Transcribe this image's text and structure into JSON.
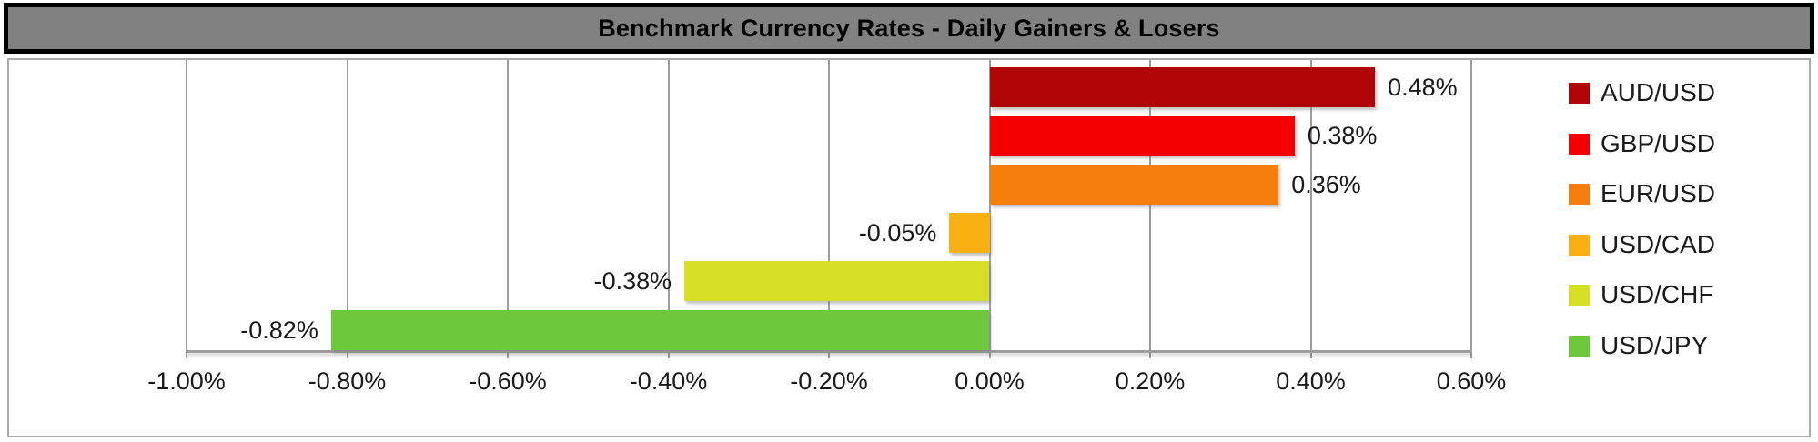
{
  "title": "Benchmark Currency Rates - Daily Gainers & Losers",
  "chart_data": {
    "type": "bar",
    "orientation": "horizontal",
    "title": "Benchmark Currency Rates - Daily Gainers & Losers",
    "series": [
      {
        "name": "AUD/USD",
        "value": 0.48,
        "label": "0.48%",
        "color": "#B00505"
      },
      {
        "name": "GBP/USD",
        "value": 0.38,
        "label": "0.38%",
        "color": "#F50000"
      },
      {
        "name": "EUR/USD",
        "value": 0.36,
        "label": "0.36%",
        "color": "#F57D0C"
      },
      {
        "name": "USD/CAD",
        "value": -0.05,
        "label": "-0.05%",
        "color": "#F9B013"
      },
      {
        "name": "USD/CHF",
        "value": -0.38,
        "label": "-0.38%",
        "color": "#D6DF23"
      },
      {
        "name": "USD/JPY",
        "value": -0.82,
        "label": "-0.82%",
        "color": "#6BC93B"
      }
    ],
    "x_axis": {
      "min": -1.0,
      "max": 0.6,
      "step": 0.2,
      "ticks": [
        {
          "value": -1.0,
          "label": "-1.00%"
        },
        {
          "value": -0.8,
          "label": "-0.80%"
        },
        {
          "value": -0.6,
          "label": "-0.60%"
        },
        {
          "value": -0.4,
          "label": "-0.40%"
        },
        {
          "value": -0.2,
          "label": "-0.20%"
        },
        {
          "value": 0.0,
          "label": "0.00%"
        },
        {
          "value": 0.2,
          "label": "0.20%"
        },
        {
          "value": 0.4,
          "label": "0.40%"
        },
        {
          "value": 0.6,
          "label": "0.60%"
        }
      ]
    },
    "grid": true,
    "legend_position": "right"
  },
  "colors": {
    "title_bg": "#818181",
    "title_border": "#000000",
    "title_text": "#000000",
    "frame_border": "#ABABAB",
    "gridline": "#9D9D9D",
    "axis_line": "#9D9D9D",
    "plot_bg": "#FFFFFF",
    "label_text": "#1A1A1A"
  }
}
